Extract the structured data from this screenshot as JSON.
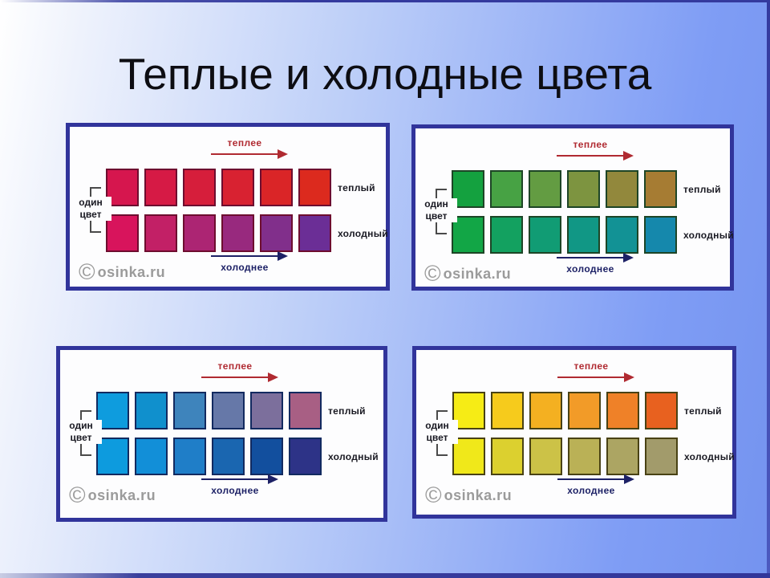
{
  "slide": {
    "title": "Теплые и холодные цвета"
  },
  "labels": {
    "warmer": "теплее",
    "colder": "холоднее",
    "warm": "теплый",
    "cold": "холодный",
    "one_color_line1": "один",
    "one_color_line2": "цвет"
  },
  "watermark": {
    "symbol": "©",
    "text": "osinka.ru"
  },
  "colors": {
    "background_left": "#ffffff",
    "background_right": "#7f9df5",
    "frame_accent": "#343a9e",
    "panel_border": "#31349b",
    "panel_background": "#fdfdfe",
    "warmer_arrow": "#b02a31",
    "colder_arrow": "#1d2166",
    "label_text": "#191922",
    "watermark_gray": "#9b9b9b",
    "title_text": "#0d0d12"
  },
  "panels": [
    {
      "hue": "red-violet",
      "swatch_border": "#6d0d2f",
      "warm_row": [
        "#d6164e",
        "#d61a45",
        "#d61e3b",
        "#d82231",
        "#da2527",
        "#dc2a1e"
      ],
      "cold_row": [
        "#d8145c",
        "#c22066",
        "#ac2573",
        "#98297e",
        "#812f8b",
        "#6b2e96"
      ]
    },
    {
      "hue": "green-brown-teal",
      "swatch_border": "#1d4526",
      "warm_row": [
        "#14a13f",
        "#47a244",
        "#639c42",
        "#7d9440",
        "#92883c",
        "#a67c33"
      ],
      "cold_row": [
        "#12a646",
        "#13a160",
        "#119c74",
        "#119785",
        "#129295",
        "#1588ac"
      ]
    },
    {
      "hue": "blue-mauve-navy",
      "swatch_border": "#122a60",
      "warm_row": [
        "#0e9cde",
        "#1090cd",
        "#3e84bc",
        "#6678a8",
        "#7c6f9c",
        "#a85f84"
      ],
      "cold_row": [
        "#0d9bde",
        "#128fd8",
        "#1f7ec8",
        "#1a66b0",
        "#124f9e",
        "#2d3387"
      ]
    },
    {
      "hue": "yellow-orange-olive",
      "swatch_border": "#494214",
      "warm_row": [
        "#f6ec15",
        "#f6cb1c",
        "#f4b021",
        "#f29b28",
        "#ef8128",
        "#e8611f"
      ],
      "cold_row": [
        "#f0e81a",
        "#dcd02f",
        "#ccc247",
        "#bab156",
        "#aca563",
        "#a29b6b"
      ]
    }
  ]
}
